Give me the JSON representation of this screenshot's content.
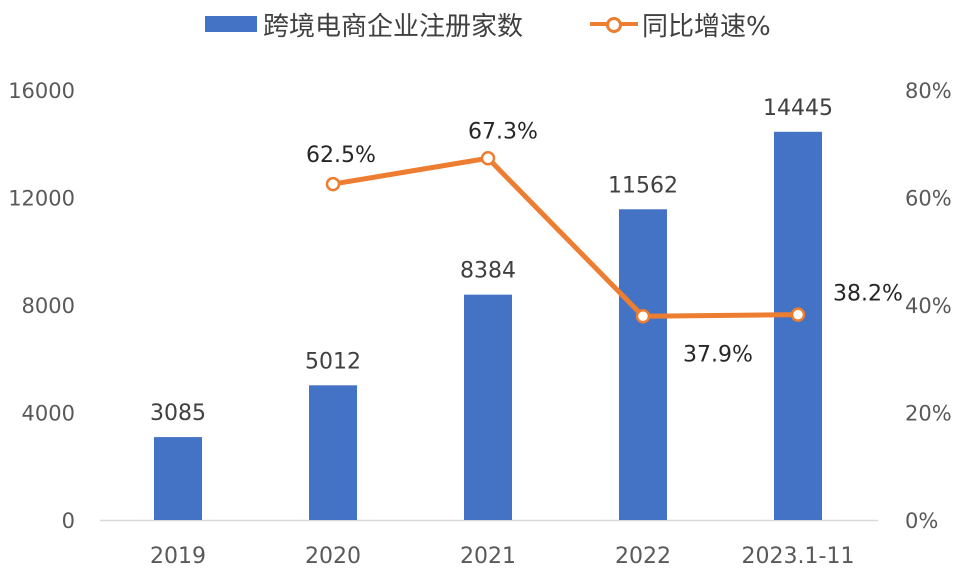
{
  "legend": {
    "bar_label": "跨境电商企业注册家数",
    "line_label": "同比增速%"
  },
  "colors": {
    "bar": "#4472C4",
    "line": "#ED7D31",
    "axis_text": "#595959",
    "label_text": "#404040"
  },
  "axes": {
    "left_ticks": [
      "0",
      "4000",
      "8000",
      "12000",
      "16000"
    ],
    "right_ticks": [
      "0%",
      "20%",
      "40%",
      "60%",
      "80%"
    ],
    "x_ticks": [
      "2019",
      "2020",
      "2021",
      "2022",
      "2023.1-11"
    ]
  },
  "labels": {
    "bars": [
      "3085",
      "5012",
      "8384",
      "11562",
      "14445"
    ],
    "growth": [
      "62.5%",
      "67.3%",
      "37.9%",
      "38.2%"
    ]
  },
  "chart_data": {
    "type": "bar",
    "title": "",
    "categories": [
      "2019",
      "2020",
      "2021",
      "2022",
      "2023.1-11"
    ],
    "series": [
      {
        "name": "跨境电商企业注册家数",
        "type": "bar",
        "axis": "left",
        "values": [
          3085,
          5012,
          8384,
          11562,
          14445
        ]
      },
      {
        "name": "同比增速%",
        "type": "line",
        "axis": "right",
        "values": [
          null,
          62.5,
          67.3,
          37.9,
          38.2
        ]
      }
    ],
    "xlabel": "",
    "ylabel": "",
    "ylim": [
      0,
      16000
    ],
    "y2lim": [
      0,
      80
    ],
    "y_ticks": [
      0,
      4000,
      8000,
      12000,
      16000
    ],
    "y2_ticks": [
      "0%",
      "20%",
      "40%",
      "60%",
      "80%"
    ],
    "grid": false,
    "legend_position": "top"
  }
}
